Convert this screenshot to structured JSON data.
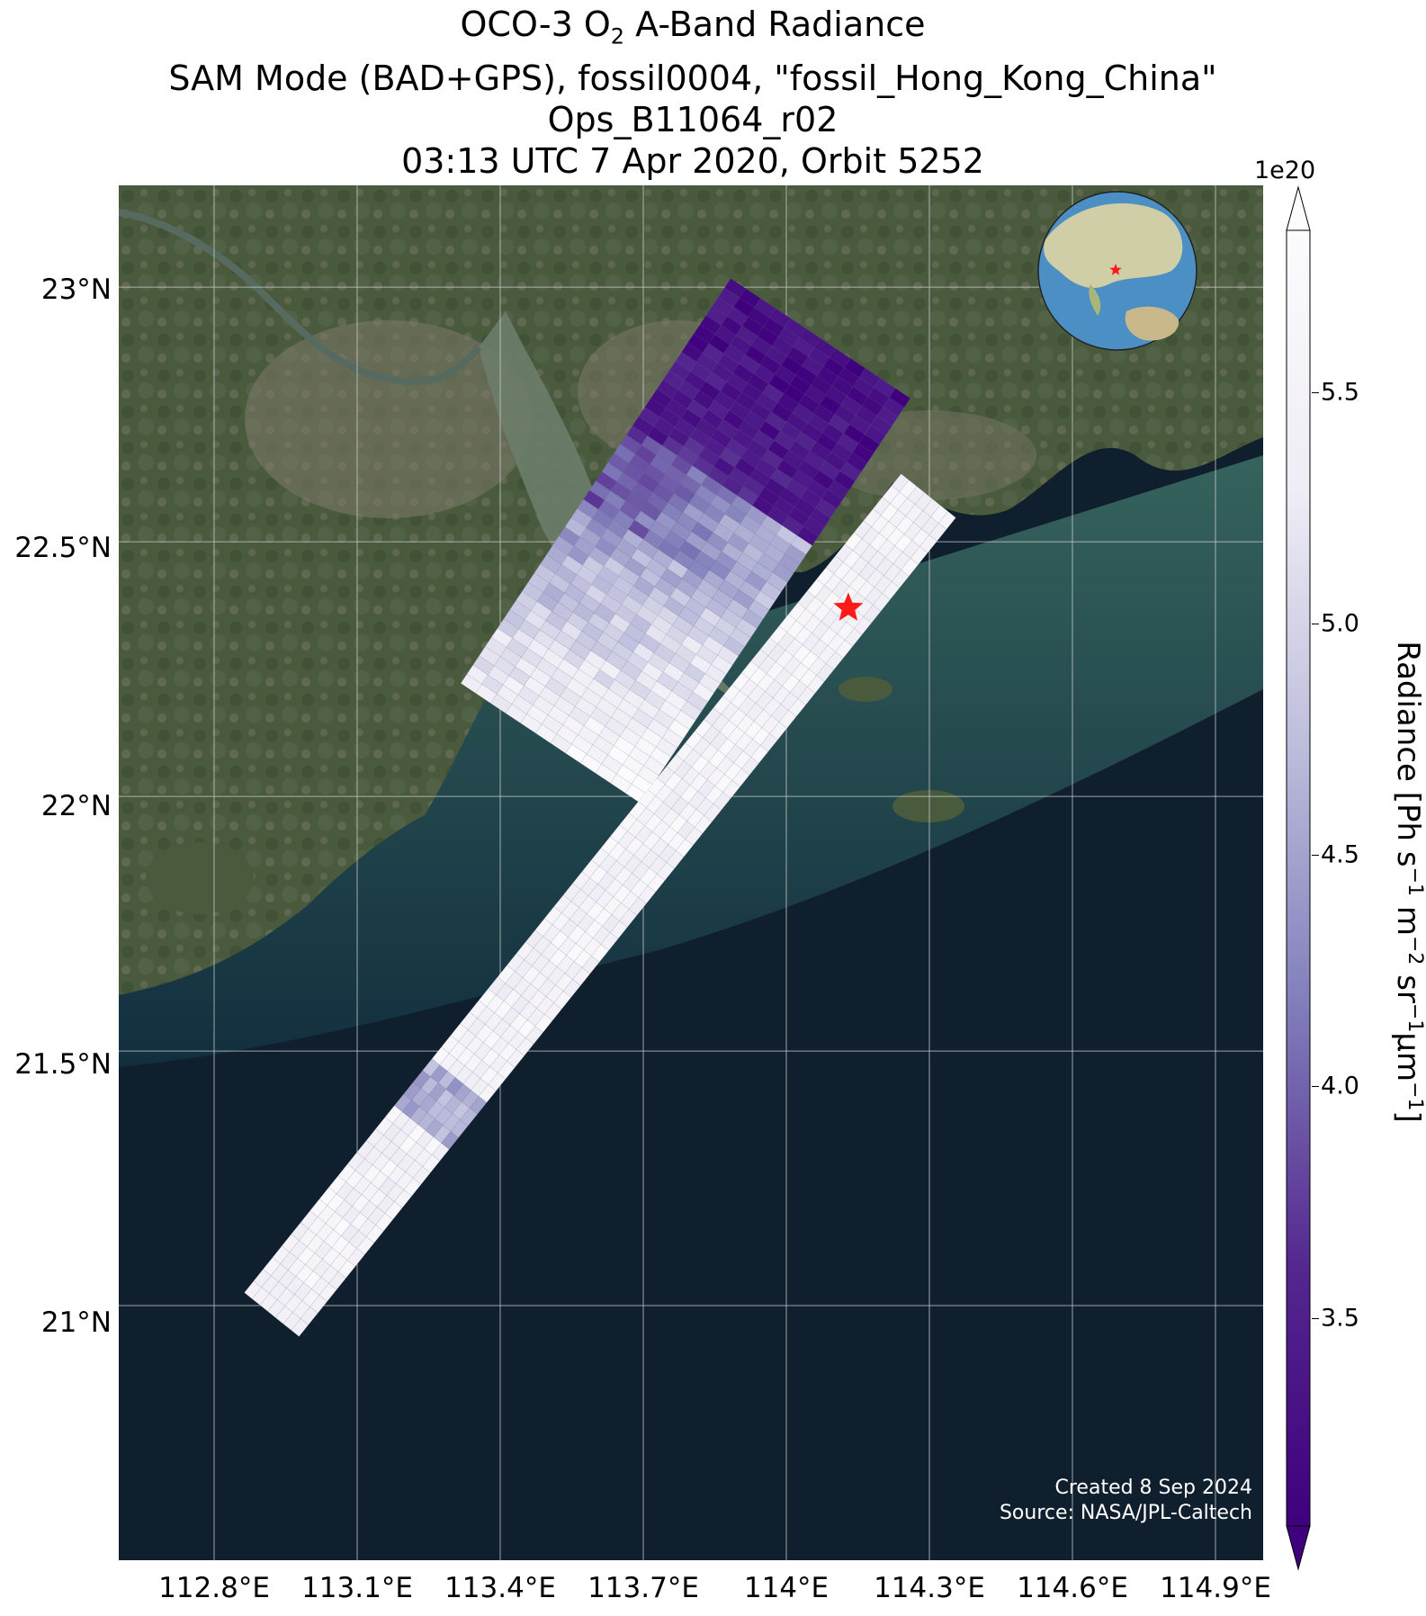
{
  "title": {
    "line1_prefix": "OCO-3 O",
    "line1_sub": "2",
    "line1_suffix": " A-Band Radiance",
    "line2": "SAM Mode (BAD+GPS), fossil0004, \"fossil_Hong_Kong_China\"",
    "line3": "Ops_B11064_r02",
    "line4": "03:13 UTC 7 Apr 2020, Orbit 5252"
  },
  "axes": {
    "lat_labels": [
      "23°N",
      "22.5°N",
      "22°N",
      "21.5°N",
      "21°N"
    ],
    "lon_labels": [
      "112.8°E",
      "113.1°E",
      "113.4°E",
      "113.7°E",
      "114°E",
      "114.3°E",
      "114.6°E",
      "114.9°E"
    ]
  },
  "colorbar": {
    "exponent": "1e20",
    "ticks": [
      "3.5",
      "4.0",
      "4.5",
      "5.0",
      "5.5"
    ],
    "label_prefix": "Radiance [Ph s",
    "label_parts": [
      "−1",
      " m",
      "−2",
      " sr",
      "−1",
      "μm",
      "−1",
      "]"
    ],
    "colormap": "Purples_r",
    "extend": "both"
  },
  "credits": {
    "created": "Created 8 Sep 2024",
    "source": "Source: NASA/JPL-Caltech"
  },
  "target": {
    "name": "fossil_Hong_Kong_China",
    "marker": "red-star",
    "lat": 22.37,
    "lon": 114.13
  },
  "extent": {
    "lon_min": 112.6,
    "lon_max": 115.0,
    "lat_min": 20.5,
    "lat_max": 23.2
  },
  "colors": {
    "land": "#4a5a3c",
    "urban": "#7d7a6a",
    "river_water": "#6b7d6a",
    "shallow_sea": "#2e5a58",
    "deep_sea": "#0f1f2e",
    "grid": "#d0d0d0",
    "star": "#ff1a1a",
    "colorbar_low": "#3f007d",
    "colorbar_high": "#fcfbfd"
  }
}
